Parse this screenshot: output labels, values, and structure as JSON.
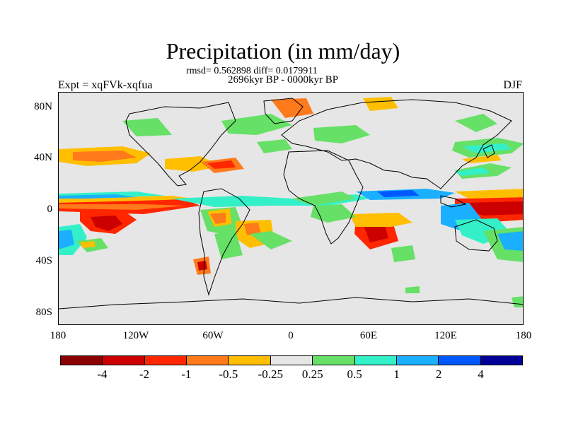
{
  "title": "Precipitation (in mm/day)",
  "stats": "rmsd= 0.562898 diff= 0.0179911",
  "period": "2696kyr BP - 0000kyr BP",
  "experiment": "Expt = xqFVk-xqfua",
  "season": "DJF",
  "y_axis_labels": [
    "80N",
    "40N",
    "0",
    "40S",
    "80S"
  ],
  "x_axis_labels": [
    "180",
    "120W",
    "60W",
    "0",
    "60E",
    "120E",
    "180"
  ],
  "colorbar": {
    "colors": [
      "#8b0000",
      "#cc0000",
      "#ff2600",
      "#ff7a1a",
      "#ffbf00",
      "#e6e6e6",
      "#66e066",
      "#33f0c8",
      "#1ab0ff",
      "#0059ff",
      "#000099"
    ],
    "labels": [
      "-4",
      "-2",
      "-1",
      "-0.5",
      "-0.25",
      "0.25",
      "0.5",
      "1",
      "2",
      "4"
    ]
  },
  "map_background": "#e6e6e6"
}
